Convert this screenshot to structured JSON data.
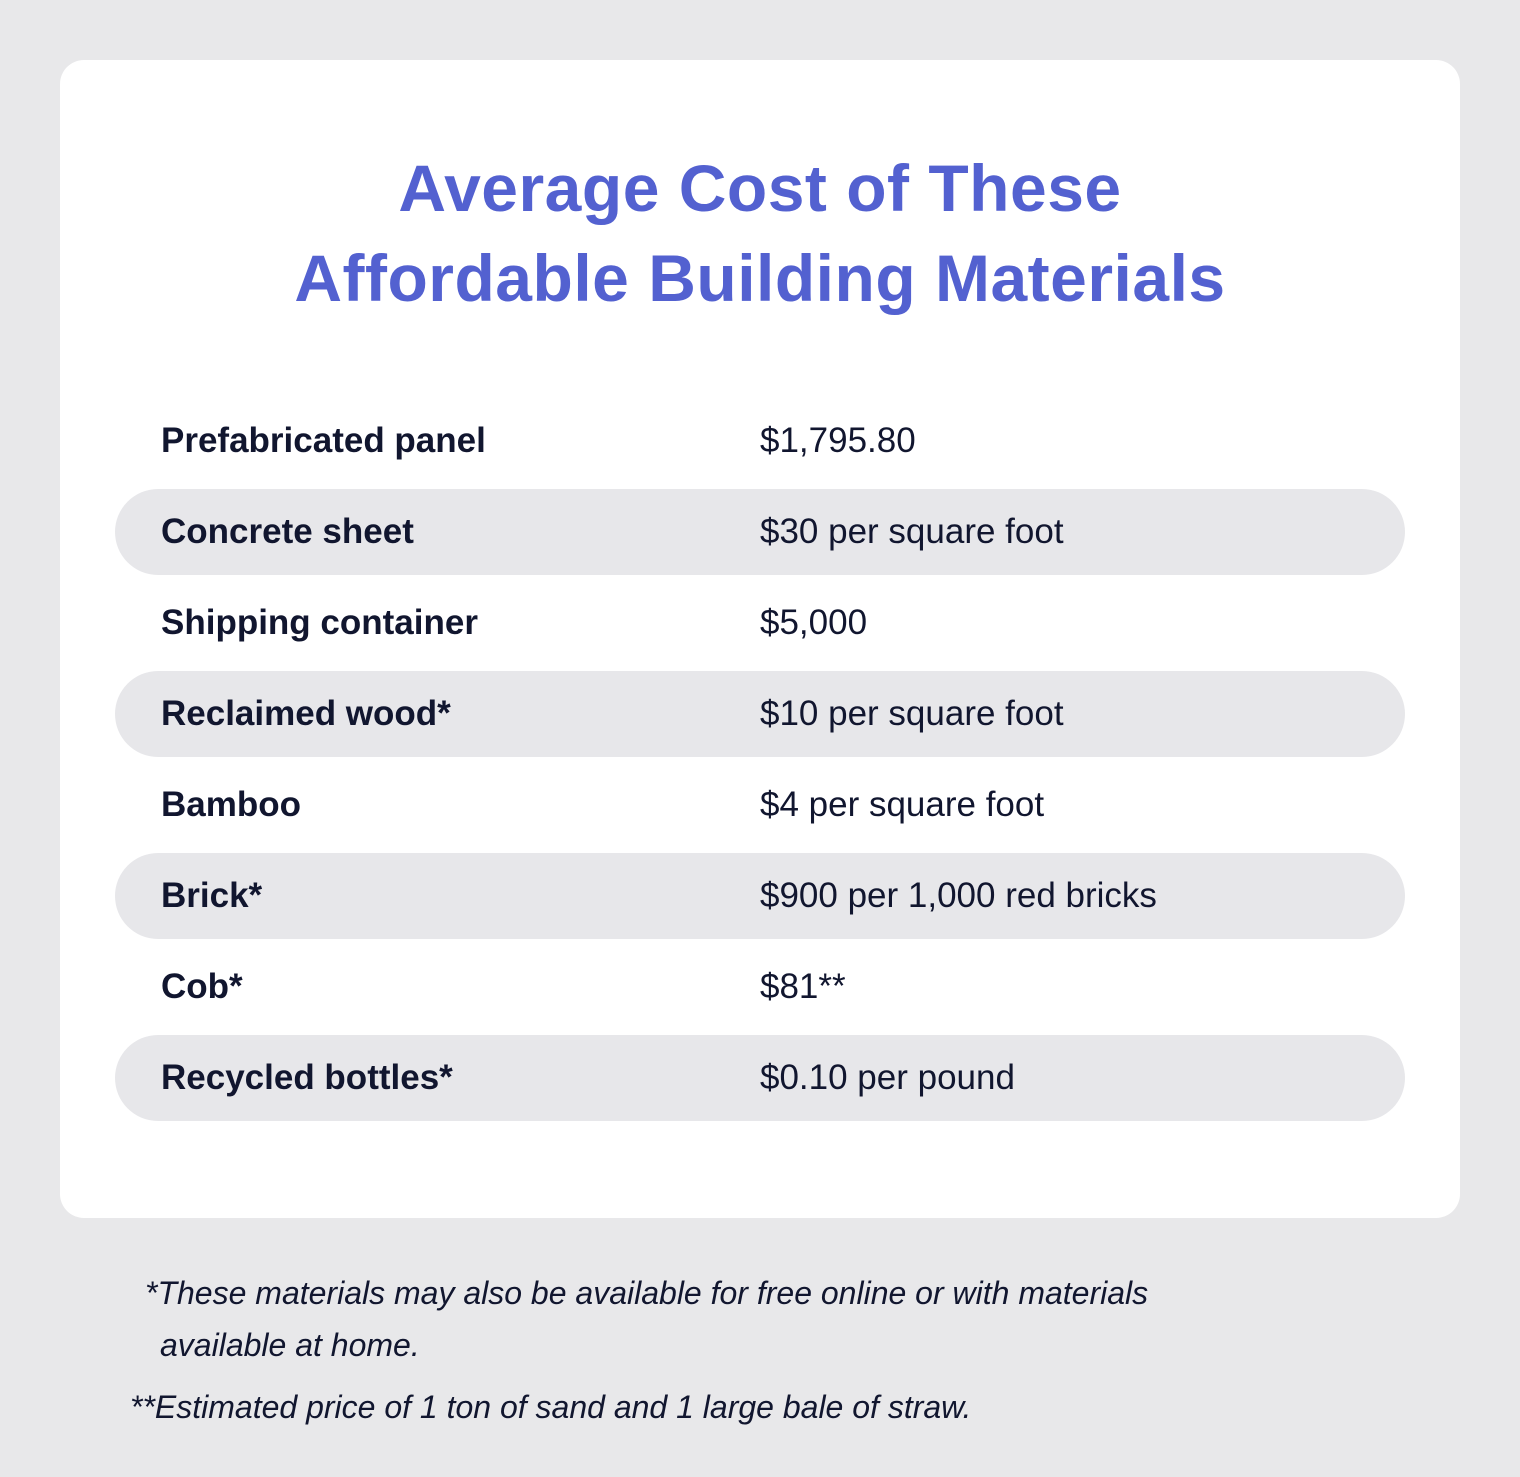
{
  "title": {
    "line1": "Average Cost of These",
    "line2": "Affordable Building Materials"
  },
  "rows": [
    {
      "material": "Prefabricated panel",
      "cost": "$1,795.80"
    },
    {
      "material": "Concrete sheet",
      "cost": "$30 per square foot"
    },
    {
      "material": "Shipping container",
      "cost": "$5,000"
    },
    {
      "material": "Reclaimed wood*",
      "cost": "$10 per square foot"
    },
    {
      "material": "Bamboo",
      "cost": "$4 per square foot"
    },
    {
      "material": "Brick*",
      "cost": "$900 per 1,000 red bricks"
    },
    {
      "material": "Cob*",
      "cost": "$81**"
    },
    {
      "material": "Recycled bottles*",
      "cost": "$0.10 per pound"
    }
  ],
  "footnotes": {
    "note1_line1": "*These materials may also be available for free online or with materials",
    "note1_line2": "available at home.",
    "note2": "**Estimated price of 1 ton of sand and 1 large bale of straw."
  },
  "colors": {
    "title": "#5361d0",
    "text": "#11162f",
    "stripe": "#e7e7ea",
    "background": "#e8e8ea"
  }
}
